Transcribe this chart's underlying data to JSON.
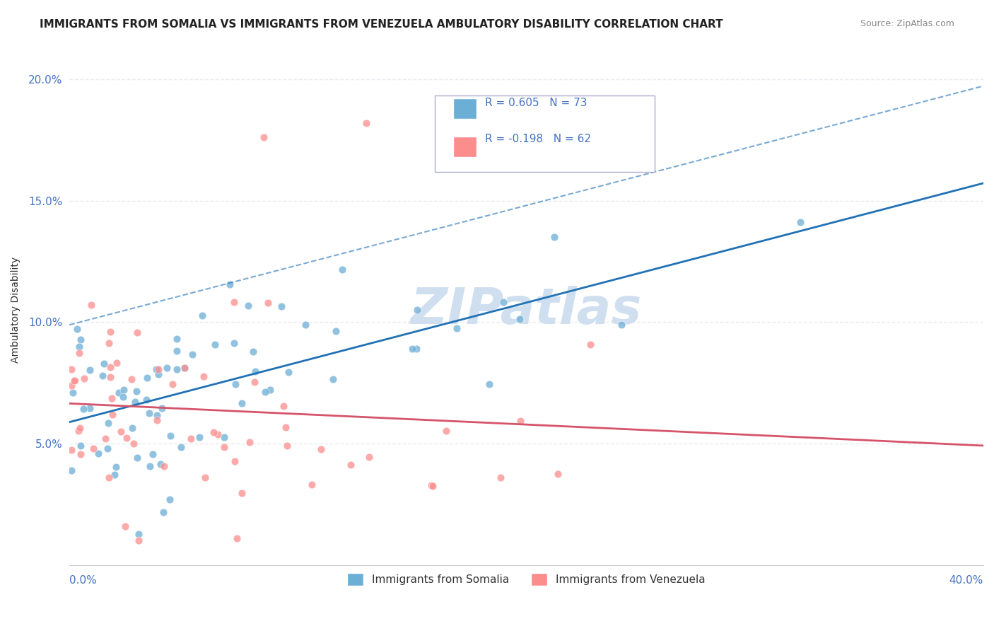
{
  "title": "IMMIGRANTS FROM SOMALIA VS IMMIGRANTS FROM VENEZUELA AMBULATORY DISABILITY CORRELATION CHART",
  "source": "Source: ZipAtlas.com",
  "ylabel": "Ambulatory Disability",
  "yticks": [
    0.0,
    0.05,
    0.1,
    0.15,
    0.2
  ],
  "ytick_labels": [
    "",
    "5.0%",
    "10.0%",
    "15.0%",
    "20.0%"
  ],
  "xlim": [
    0.0,
    0.4
  ],
  "ylim": [
    0.0,
    0.21
  ],
  "somalia_R": 0.605,
  "somalia_N": 73,
  "venezuela_R": -0.198,
  "venezuela_N": 62,
  "somalia_color": "#6baed6",
  "venezuela_color": "#fc8d8d",
  "trend_somalia_color": "#2171b5",
  "trend_venezuela_color": "#d6546a",
  "watermark": "ZIPatlas",
  "watermark_color": "#d0dff0",
  "background_color": "#ffffff",
  "grid_color": "#e8eaf0",
  "axis_color": "#4472c4",
  "title_fontsize": 11,
  "label_fontsize": 10
}
